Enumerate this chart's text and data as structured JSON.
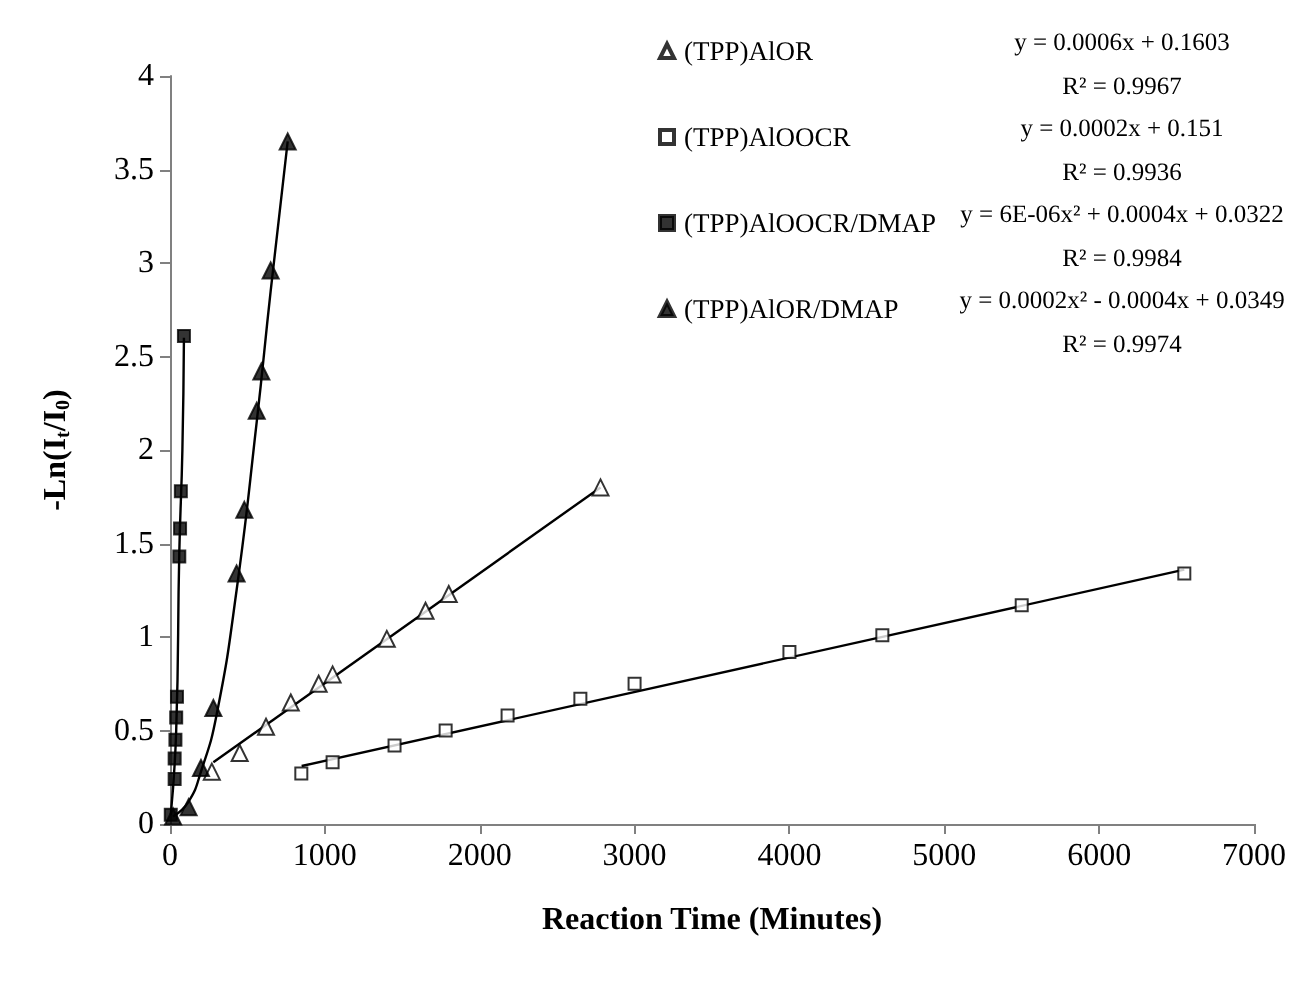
{
  "chart_data": {
    "type": "scatter",
    "xlabel": "Reaction Time (Minutes)",
    "ylabel": "-Ln(I$_{t}$/I$_{0}$)",
    "xlim": [
      0,
      7000
    ],
    "xticks": [
      0,
      1000,
      2000,
      3000,
      4000,
      5000,
      6000,
      7000
    ],
    "ylim": [
      0,
      4
    ],
    "yticks": [
      0,
      0.5,
      1,
      1.5,
      2,
      2.5,
      3,
      3.5,
      4
    ],
    "grid": false,
    "legend": "top",
    "series": [
      {
        "name": "(TPP)AlOR",
        "color": "#ffffff",
        "marker": "triangle",
        "x": [
          270,
          450,
          620,
          780,
          960,
          1050,
          1400,
          1650,
          1800,
          2780
        ],
        "values": [
          0.28,
          0.38,
          0.52,
          0.65,
          0.75,
          0.8,
          0.99,
          1.14,
          1.23,
          1.8
        ]
      },
      {
        "name": "(TPP)AlOOCR",
        "color": "#ffffff",
        "marker": "square",
        "x": [
          848,
          1050,
          1450,
          1780,
          2180,
          2650,
          3000,
          4000,
          4600,
          5500,
          6550
        ],
        "values": [
          0.27,
          0.33,
          0.42,
          0.5,
          0.58,
          0.67,
          0.75,
          0.92,
          1.01,
          1.17,
          1.34
        ]
      },
      {
        "name": "(TPP)AlOOCR/DMAP",
        "color": "#000000",
        "marker": "square",
        "x": [
          5,
          30,
          30,
          35,
          40,
          45,
          60,
          65,
          70,
          90
        ],
        "values": [
          0.05,
          0.24,
          0.35,
          0.45,
          0.57,
          0.68,
          1.43,
          1.58,
          1.78,
          2.61
        ]
      },
      {
        "name": "(TPP)AlOR/DMAP",
        "color": "#000000",
        "marker": "triangle",
        "x": [
          20,
          120,
          200,
          280,
          430,
          480,
          560,
          590,
          650,
          760
        ],
        "values": [
          0.04,
          0.09,
          0.3,
          0.62,
          1.34,
          1.68,
          2.21,
          2.42,
          2.96,
          3.65
        ]
      },
      {
        "type": "line",
        "color": "#000000",
        "marker": "none",
        "x": [
          280,
          2780
        ],
        "values": [
          0.33,
          1.8
        ]
      },
      {
        "type": "line",
        "color": "#000000",
        "marker": "none",
        "x": [
          850,
          6550
        ],
        "values": [
          0.31,
          1.36
        ]
      },
      {
        "type": "line",
        "color": "#000000",
        "marker": "none",
        "x": [
          5,
          40,
          60,
          80,
          90
        ],
        "values": [
          0.05,
          0.5,
          1.45,
          2.0,
          2.6
        ]
      },
      {
        "type": "line",
        "color": "#000000",
        "marker": "none",
        "x": [
          20,
          120,
          200,
          300,
          430,
          560,
          650,
          760
        ],
        "values": [
          0.04,
          0.12,
          0.28,
          0.58,
          1.25,
          2.15,
          2.85,
          3.65
        ]
      }
    ],
    "annotations": [
      "y = 0.0006x + 0.1603",
      "R² = 0.9967",
      "y = 0.0002x + 0.151",
      "R² = 0.9936",
      "y = 6E-06x² + 0.0004x + 0.0322",
      "R² = 0.9984",
      "y = 0.0002x² - 0.0004x + 0.0349",
      "R² = 0.9974"
    ]
  }
}
